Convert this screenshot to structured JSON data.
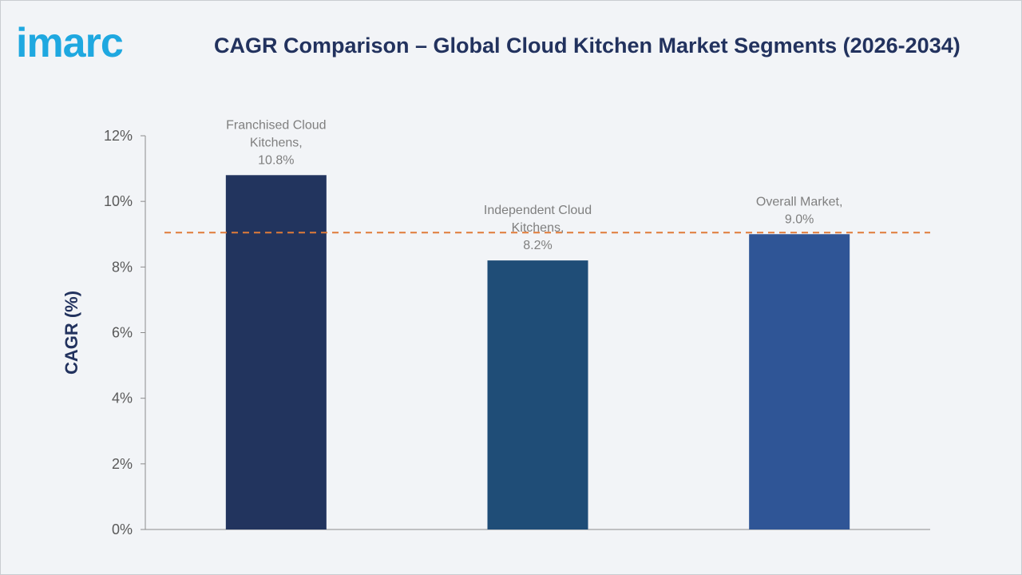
{
  "brand": {
    "logo_text": "imarc",
    "logo_color": "#1fa8e0"
  },
  "colors": {
    "title": "#22325e",
    "axis_label": "#22325e",
    "ticks": "#595959",
    "data_label": "#7f7f7f",
    "reference_line": "#e07b39"
  },
  "chart_data": {
    "type": "bar",
    "title": "CAGR Comparison – Global Cloud Kitchen Market Segments (2026-2034)",
    "xlabel": "",
    "ylabel": "CAGR (%)",
    "ylim": [
      0,
      12
    ],
    "yticks": [
      0,
      2,
      4,
      6,
      8,
      10,
      12
    ],
    "ytick_labels": [
      "0%",
      "2%",
      "4%",
      "6%",
      "8%",
      "10%",
      "12%"
    ],
    "categories": [
      "Franchised Cloud Kitchens",
      "Independent Cloud Kitchens",
      "Overall Market"
    ],
    "values": [
      10.8,
      8.2,
      9.0
    ],
    "bar_colors": [
      "#22345e",
      "#1f4d77",
      "#2f5596"
    ],
    "data_labels": [
      [
        "Franchised Cloud",
        "Kitchens,",
        "10.8%"
      ],
      [
        "Independent Cloud",
        "Kitchens,",
        "8.2%"
      ],
      [
        "Overall Market,",
        "9.0%"
      ]
    ],
    "reference_line": {
      "value": 9.05,
      "style": "dashed"
    },
    "grid": false,
    "legend": "none"
  }
}
